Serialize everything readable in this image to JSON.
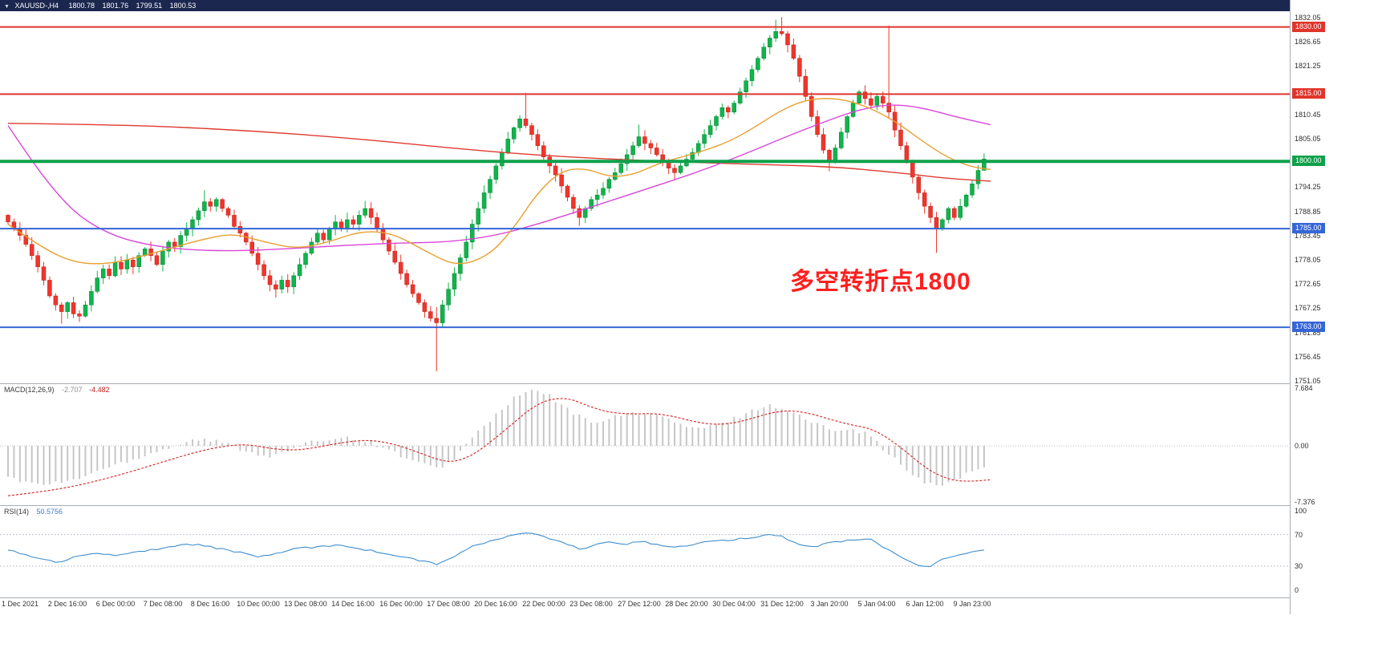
{
  "window": {
    "dropdown_icon": "▼",
    "symbol_timeframe": "XAUUSD-,H4",
    "ohlc": {
      "open": "1800.78",
      "high": "1801.76",
      "low": "1799.51",
      "close": "1800.53"
    }
  },
  "annotation": {
    "text": "多空转折点1800",
    "color": "#ff1f1f"
  },
  "chart_data": {
    "type": "candlestick",
    "symbol": "XAUUSD-",
    "timeframe": "H4",
    "price_axis": {
      "ticks": [
        1832.05,
        1826.65,
        1821.25,
        1810.45,
        1805.05,
        1794.25,
        1788.85,
        1783.45,
        1778.05,
        1772.65,
        1767.25,
        1761.85,
        1756.45,
        1751.05
      ],
      "badges": [
        {
          "label": "1830.00",
          "price": 1830.0,
          "color": "#e0352b"
        },
        {
          "label": "1815.00",
          "price": 1815.0,
          "color": "#e0352b"
        },
        {
          "label": "1800.00",
          "price": 1800.0,
          "color": "#0fa04a"
        },
        {
          "label": "1785.00",
          "price": 1785.0,
          "color": "#3566d6"
        },
        {
          "label": "1763.00",
          "price": 1763.0,
          "color": "#3566d6"
        }
      ],
      "range": [
        1750.5,
        1833.5
      ]
    },
    "levels": [
      {
        "price": 1830.0,
        "color": "#e0352b",
        "width": 2
      },
      {
        "price": 1815.0,
        "color": "#e0352b",
        "width": 2
      },
      {
        "price": 1800.0,
        "color": "#0fa04a",
        "width": 4
      },
      {
        "price": 1785.0,
        "color": "#3566d6",
        "width": 2
      },
      {
        "price": 1763.0,
        "color": "#3566d6",
        "width": 2
      }
    ],
    "x_labels": [
      "1 Dec 2021",
      "2 Dec 16:00",
      "6 Dec 00:00",
      "7 Dec 08:00",
      "8 Dec 16:00",
      "10 Dec 00:00",
      "13 Dec 08:00",
      "14 Dec 16:00",
      "16 Dec 00:00",
      "17 Dec 08:00",
      "20 Dec 16:00",
      "22 Dec 00:00",
      "23 Dec 08:00",
      "27 Dec 12:00",
      "28 Dec 20:00",
      "30 Dec 04:00",
      "31 Dec 12:00",
      "3 Jan 20:00",
      "5 Jan 04:00",
      "6 Jan 12:00",
      "9 Jan 23:00"
    ],
    "candles": {
      "up_color": "#10b44c",
      "down_color": "#f0352b",
      "first_open": 1788.0,
      "closes": [
        1786.5,
        1785,
        1783.5,
        1781.5,
        1779,
        1776.5,
        1773.5,
        1770,
        1768,
        1766.5,
        1768.5,
        1766,
        1765.5,
        1768,
        1771,
        1774,
        1776,
        1774.5,
        1777.5,
        1776,
        1778,
        1776.5,
        1779,
        1780.5,
        1779,
        1777,
        1780,
        1782,
        1781,
        1783.5,
        1785,
        1787,
        1789,
        1791,
        1790,
        1791.5,
        1789.5,
        1788,
        1785.5,
        1784,
        1782,
        1779.5,
        1777,
        1774.5,
        1772.5,
        1771.5,
        1773.5,
        1772,
        1774.5,
        1777,
        1779.5,
        1782,
        1784,
        1782.5,
        1785,
        1786.5,
        1785,
        1787,
        1786,
        1788,
        1789.5,
        1787.5,
        1785,
        1782.5,
        1780,
        1777.5,
        1775,
        1772.5,
        1770.5,
        1768.5,
        1766.5,
        1765,
        1764,
        1768,
        1771.5,
        1775,
        1778.5,
        1782,
        1786,
        1789.5,
        1793,
        1796,
        1799,
        1802,
        1805,
        1807.5,
        1809.5,
        1808,
        1806,
        1803.5,
        1801,
        1799,
        1797,
        1794.5,
        1792,
        1789.5,
        1787.5,
        1789.5,
        1791.5,
        1792.5,
        1794,
        1796,
        1797.5,
        1799.5,
        1801.5,
        1803.5,
        1805.5,
        1804,
        1803,
        1801.5,
        1800,
        1798.5,
        1797.5,
        1799,
        1800.5,
        1802,
        1804,
        1806,
        1808,
        1810,
        1812,
        1811,
        1813,
        1815.5,
        1818,
        1820.5,
        1823,
        1825.5,
        1827.5,
        1829,
        1828.5,
        1826,
        1823,
        1819,
        1814.5,
        1810,
        1806,
        1802.5,
        1800,
        1803,
        1806.5,
        1810,
        1813,
        1815.5,
        1814,
        1812.5,
        1814.5,
        1813,
        1811,
        1807,
        1803.5,
        1800,
        1796.5,
        1793,
        1790,
        1787.5,
        1785,
        1787,
        1789.5,
        1787.5,
        1790,
        1792.5,
        1795,
        1798,
        1800.53
      ],
      "overrides": {
        "9": {
          "l": 1763.8
        },
        "12": {
          "l": 1764.2
        },
        "33": {
          "h": 1793.6
        },
        "45": {
          "l": 1769.6
        },
        "60": {
          "h": 1791.2
        },
        "72": {
          "l": 1753.2,
          "h": 1767.5
        },
        "87": {
          "h": 1815.3
        },
        "96": {
          "l": 1785.6
        },
        "106": {
          "h": 1808.2
        },
        "129": {
          "h": 1831.6
        },
        "130": {
          "h": 1832.2
        },
        "138": {
          "l": 1797.8
        },
        "148": {
          "h": 1830.3
        },
        "156": {
          "l": 1779.6
        },
        "164": {
          "h": 1801.76,
          "l": 1799.51
        }
      }
    },
    "moving_averages": [
      {
        "name": "ma-slow-red",
        "color": "#e03a30",
        "points": [
          [
            10,
            1808.5
          ],
          [
            150,
            1808.2
          ],
          [
            300,
            1807
          ],
          [
            450,
            1805
          ],
          [
            560,
            1803
          ],
          [
            660,
            1801.5
          ],
          [
            760,
            1800.5
          ],
          [
            860,
            1799.8
          ],
          [
            950,
            1799.3
          ],
          [
            1040,
            1798.8
          ],
          [
            1120,
            1797.5
          ],
          [
            1180,
            1796.2
          ],
          [
            1235,
            1795.6
          ]
        ]
      },
      {
        "name": "ma-medium-magenta",
        "color": "#d946d9",
        "points": [
          [
            10,
            1808
          ],
          [
            40,
            1800
          ],
          [
            70,
            1793
          ],
          [
            100,
            1787.5
          ],
          [
            140,
            1783.5
          ],
          [
            180,
            1781.5
          ],
          [
            230,
            1780.3
          ],
          [
            290,
            1780
          ],
          [
            360,
            1780.5
          ],
          [
            430,
            1781.3
          ],
          [
            500,
            1781.8
          ],
          [
            560,
            1782
          ],
          [
            620,
            1783.5
          ],
          [
            680,
            1786.5
          ],
          [
            740,
            1790
          ],
          [
            800,
            1793.5
          ],
          [
            860,
            1797
          ],
          [
            920,
            1801
          ],
          [
            980,
            1805.5
          ],
          [
            1030,
            1809
          ],
          [
            1070,
            1811.5
          ],
          [
            1110,
            1812.8
          ],
          [
            1150,
            1812
          ],
          [
            1190,
            1810
          ],
          [
            1235,
            1808.2
          ]
        ]
      },
      {
        "name": "ma-fast-orange",
        "color": "#e8a030",
        "points": [
          [
            10,
            1786
          ],
          [
            50,
            1781
          ],
          [
            90,
            1777.5
          ],
          [
            130,
            1777
          ],
          [
            170,
            1778.5
          ],
          [
            210,
            1780.5
          ],
          [
            250,
            1782.5
          ],
          [
            290,
            1784
          ],
          [
            330,
            1782
          ],
          [
            370,
            1780.5
          ],
          [
            410,
            1782
          ],
          [
            450,
            1784.5
          ],
          [
            490,
            1784
          ],
          [
            530,
            1780
          ],
          [
            570,
            1776.5
          ],
          [
            610,
            1779
          ],
          [
            640,
            1785
          ],
          [
            670,
            1793
          ],
          [
            700,
            1798
          ],
          [
            730,
            1798.5
          ],
          [
            760,
            1796.5
          ],
          [
            790,
            1797
          ],
          [
            820,
            1799.5
          ],
          [
            850,
            1801
          ],
          [
            880,
            1802.5
          ],
          [
            910,
            1804.5
          ],
          [
            940,
            1807.5
          ],
          [
            970,
            1811
          ],
          [
            1000,
            1813.5
          ],
          [
            1030,
            1814.2
          ],
          [
            1060,
            1813.5
          ],
          [
            1090,
            1811.5
          ],
          [
            1120,
            1808.5
          ],
          [
            1150,
            1804.5
          ],
          [
            1180,
            1801
          ],
          [
            1210,
            1798.8
          ],
          [
            1235,
            1798.2
          ]
        ]
      }
    ],
    "macd": {
      "label": "MACD(12,26,9)",
      "main_value": "-2.707",
      "signal_value": "-4.482",
      "scale_ticks": [
        "7.684",
        "0.00",
        "-7.376"
      ],
      "scale": {
        "max": 7.684,
        "min": -7.376
      },
      "hist_color": "#c6c6c6",
      "signal_color": "#d42222",
      "main_points": [
        [
          10,
          -4.2
        ],
        [
          50,
          -5.2
        ],
        [
          90,
          -4.6
        ],
        [
          130,
          -3
        ],
        [
          170,
          -1.6
        ],
        [
          210,
          -0.2
        ],
        [
          245,
          0.9
        ],
        [
          280,
          0.4
        ],
        [
          310,
          -0.8
        ],
        [
          340,
          -1.4
        ],
        [
          370,
          -0.2
        ],
        [
          400,
          0.8
        ],
        [
          430,
          1.2
        ],
        [
          460,
          0.6
        ],
        [
          490,
          -0.8
        ],
        [
          520,
          -2.2
        ],
        [
          545,
          -3.1
        ],
        [
          565,
          -1.8
        ],
        [
          590,
          1.2
        ],
        [
          615,
          3.8
        ],
        [
          640,
          6.2
        ],
        [
          662,
          7.4
        ],
        [
          685,
          6.6
        ],
        [
          710,
          4.6
        ],
        [
          735,
          3.2
        ],
        [
          760,
          3.6
        ],
        [
          790,
          4.4
        ],
        [
          815,
          4.2
        ],
        [
          840,
          3.2
        ],
        [
          865,
          2.2
        ],
        [
          890,
          2.6
        ],
        [
          915,
          3.6
        ],
        [
          940,
          4.8
        ],
        [
          962,
          5.4
        ],
        [
          985,
          4.6
        ],
        [
          1010,
          3.2
        ],
        [
          1035,
          2.2
        ],
        [
          1060,
          2.4
        ],
        [
          1085,
          1.4
        ],
        [
          1105,
          -0.8
        ],
        [
          1130,
          -3.2
        ],
        [
          1150,
          -4.8
        ],
        [
          1170,
          -5.4
        ],
        [
          1190,
          -4.4
        ],
        [
          1212,
          -3.4
        ],
        [
          1234,
          -2.707
        ]
      ],
      "signal_points": [
        [
          10,
          -6.6
        ],
        [
          50,
          -6.1
        ],
        [
          90,
          -5.4
        ],
        [
          130,
          -4.4
        ],
        [
          170,
          -3.2
        ],
        [
          210,
          -1.9
        ],
        [
          245,
          -0.8
        ],
        [
          280,
          0
        ],
        [
          310,
          0.2
        ],
        [
          340,
          -0.4
        ],
        [
          370,
          -0.6
        ],
        [
          400,
          -0.1
        ],
        [
          430,
          0.5
        ],
        [
          460,
          0.8
        ],
        [
          490,
          0.3
        ],
        [
          520,
          -0.8
        ],
        [
          545,
          -1.8
        ],
        [
          565,
          -2.2
        ],
        [
          590,
          -1.2
        ],
        [
          615,
          0.8
        ],
        [
          640,
          3
        ],
        [
          662,
          5
        ],
        [
          685,
          6.2
        ],
        [
          710,
          6.3
        ],
        [
          735,
          5.2
        ],
        [
          760,
          4.4
        ],
        [
          790,
          4.2
        ],
        [
          815,
          4.3
        ],
        [
          840,
          3.9
        ],
        [
          865,
          3.2
        ],
        [
          890,
          2.8
        ],
        [
          915,
          3
        ],
        [
          940,
          3.7
        ],
        [
          962,
          4.4
        ],
        [
          985,
          4.7
        ],
        [
          1010,
          4.3
        ],
        [
          1035,
          3.5
        ],
        [
          1060,
          2.8
        ],
        [
          1085,
          2.3
        ],
        [
          1105,
          1.2
        ],
        [
          1130,
          -0.8
        ],
        [
          1150,
          -2.6
        ],
        [
          1170,
          -3.9
        ],
        [
          1190,
          -4.6
        ],
        [
          1212,
          -4.7
        ],
        [
          1234,
          -4.482
        ]
      ]
    },
    "rsi": {
      "label": "RSI(14)",
      "value": "50.5756",
      "color": "#3e8ed0",
      "levels": [
        70,
        30
      ],
      "scale_ticks": [
        "100",
        "70",
        "30",
        "0"
      ],
      "points": [
        [
          10,
          50
        ],
        [
          30,
          45
        ],
        [
          55,
          38
        ],
        [
          75,
          34
        ],
        [
          95,
          42
        ],
        [
          115,
          47
        ],
        [
          140,
          44
        ],
        [
          165,
          47
        ],
        [
          190,
          51
        ],
        [
          215,
          55
        ],
        [
          245,
          58
        ],
        [
          270,
          53
        ],
        [
          295,
          48
        ],
        [
          320,
          42
        ],
        [
          345,
          46
        ],
        [
          370,
          52
        ],
        [
          400,
          55
        ],
        [
          425,
          57
        ],
        [
          450,
          52
        ],
        [
          475,
          47
        ],
        [
          500,
          42
        ],
        [
          525,
          37
        ],
        [
          545,
          32
        ],
        [
          565,
          42
        ],
        [
          590,
          55
        ],
        [
          615,
          63
        ],
        [
          640,
          69
        ],
        [
          660,
          73
        ],
        [
          680,
          66
        ],
        [
          700,
          60
        ],
        [
          722,
          52
        ],
        [
          740,
          56
        ],
        [
          760,
          60
        ],
        [
          780,
          58
        ],
        [
          800,
          62
        ],
        [
          820,
          57
        ],
        [
          840,
          53
        ],
        [
          860,
          57
        ],
        [
          880,
          60
        ],
        [
          900,
          62
        ],
        [
          920,
          64
        ],
        [
          940,
          67
        ],
        [
          958,
          70
        ],
        [
          975,
          68
        ],
        [
          995,
          57
        ],
        [
          1015,
          54
        ],
        [
          1035,
          60
        ],
        [
          1060,
          63
        ],
        [
          1085,
          64
        ],
        [
          1105,
          52
        ],
        [
          1125,
          40
        ],
        [
          1145,
          32
        ],
        [
          1160,
          30
        ],
        [
          1175,
          38
        ],
        [
          1190,
          43
        ],
        [
          1205,
          47
        ],
        [
          1220,
          49
        ],
        [
          1234,
          50.58
        ]
      ]
    }
  }
}
